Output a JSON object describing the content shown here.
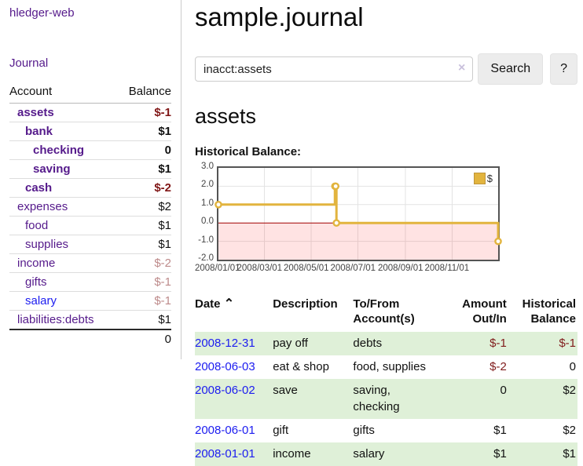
{
  "sidebar": {
    "app_title": "hledger-web",
    "journal_link": "Journal",
    "table": {
      "col_account": "Account",
      "col_balance": "Balance",
      "rows": [
        {
          "account": "assets",
          "indent": 1,
          "bold": true,
          "balance": "$-1",
          "balance_style": "neg"
        },
        {
          "account": "bank",
          "indent": 2,
          "bold": true,
          "balance": "$1",
          "balance_style": "pos"
        },
        {
          "account": "checking",
          "indent": 3,
          "bold": true,
          "balance": "0",
          "balance_style": "pos"
        },
        {
          "account": "saving",
          "indent": 3,
          "bold": true,
          "balance": "$1",
          "balance_style": "pos"
        },
        {
          "account": "cash",
          "indent": 2,
          "bold": true,
          "balance": "$-2",
          "balance_style": "neg"
        },
        {
          "account": "expenses",
          "indent": 1,
          "bold": false,
          "balance": "$2",
          "balance_style": "pos"
        },
        {
          "account": "food",
          "indent": 2,
          "bold": false,
          "balance": "$1",
          "balance_style": "pos"
        },
        {
          "account": "supplies",
          "indent": 2,
          "bold": false,
          "balance": "$1",
          "balance_style": "pos"
        },
        {
          "account": "income",
          "indent": 1,
          "bold": false,
          "balance": "$-2",
          "balance_style": "neg-soft"
        },
        {
          "account": "gifts",
          "indent": 2,
          "bold": false,
          "balance": "$-1",
          "balance_style": "neg-soft"
        },
        {
          "account": "salary",
          "indent": 2,
          "bold": false,
          "balance": "$-1",
          "balance_style": "neg-soft",
          "link_color": "blue"
        },
        {
          "account": "liabilities:debts",
          "indent": 1,
          "bold": false,
          "balance": "$1",
          "balance_style": "pos"
        }
      ],
      "total": "0"
    }
  },
  "header": {
    "title": "sample.journal"
  },
  "search": {
    "query": "inacct:assets",
    "clear_icon": "×",
    "button_label": "Search",
    "help_label": "?"
  },
  "account_page": {
    "title": "assets",
    "chart_label": "Historical Balance:"
  },
  "chart_data": {
    "type": "line",
    "line_style": "step-after",
    "series": [
      {
        "name": "$",
        "points": [
          [
            "2008-01-01",
            1
          ],
          [
            "2008-06-01",
            2
          ],
          [
            "2008-06-02",
            2
          ],
          [
            "2008-06-03",
            0
          ],
          [
            "2008-12-31",
            -1
          ]
        ]
      }
    ],
    "x_start": "2008-01-01",
    "x_days": 365,
    "x_ticks": [
      "2008/01/01",
      "2008/03/01",
      "2008/05/01",
      "2008/07/01",
      "2008/09/01",
      "2008/11/01"
    ],
    "y_ticks": [
      "3.0",
      "2.0",
      "1.0",
      "0.0",
      "-1.0",
      "-2.0"
    ],
    "ylim": [
      -2,
      3
    ],
    "legend": "$",
    "legend_position": "top-right",
    "grid": true,
    "colors": {
      "line": "#e2b43e",
      "marker_fill": "#ffffff",
      "zero_line": "#a00000",
      "negative_fill": "rgba(255,0,0,0.11)",
      "gridline": "#e3e3e3",
      "border": "#545454"
    }
  },
  "register": {
    "sort_caret": "⌃",
    "columns": {
      "date": "Date",
      "description": "Description",
      "accounts": "To/From Account(s)",
      "amount": "Amount Out/In",
      "balance": "Historical Balance"
    },
    "rows": [
      {
        "date": "2008-12-31",
        "description": "pay off",
        "accounts": "debts",
        "amount": "$-1",
        "amount_neg": true,
        "balance": "$-1",
        "balance_neg": true,
        "green": true
      },
      {
        "date": "2008-06-03",
        "description": "eat & shop",
        "accounts": "food, supplies",
        "amount": "$-2",
        "amount_neg": true,
        "balance": "0",
        "balance_neg": false,
        "green": false
      },
      {
        "date": "2008-06-02",
        "description": "save",
        "accounts": "saving, checking",
        "amount": "0",
        "amount_neg": false,
        "balance": "$2",
        "balance_neg": false,
        "green": true
      },
      {
        "date": "2008-06-01",
        "description": "gift",
        "accounts": "gifts",
        "amount": "$1",
        "amount_neg": false,
        "balance": "$2",
        "balance_neg": false,
        "green": false
      },
      {
        "date": "2008-01-01",
        "description": "income",
        "accounts": "salary",
        "amount": "$1",
        "amount_neg": false,
        "balance": "$1",
        "balance_neg": false,
        "green": true
      }
    ]
  }
}
